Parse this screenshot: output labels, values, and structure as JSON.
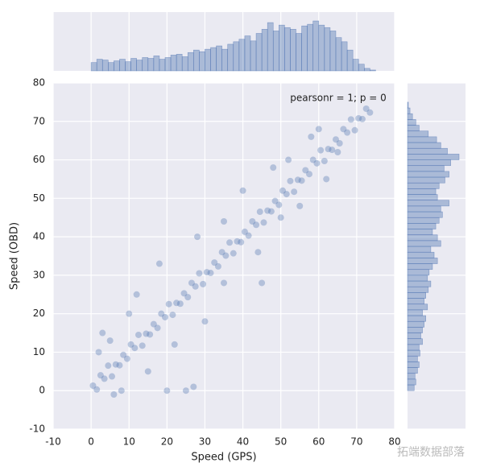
{
  "chart_data": {
    "type": "scatter",
    "xlabel": "Speed (GPS)",
    "ylabel": "Speed (OBD)",
    "annotation": "pearsonr = 1; p = 0",
    "watermark": "拓端数据部落",
    "color": "#4c72b0",
    "grid": true,
    "xlim": [
      -10,
      80
    ],
    "ylim": [
      -10,
      80
    ],
    "xticks": [
      -10,
      0,
      10,
      20,
      30,
      40,
      50,
      60,
      70,
      80
    ],
    "yticks": [
      -10,
      0,
      10,
      20,
      30,
      40,
      50,
      60,
      70,
      80
    ],
    "x": [
      0.5,
      1.5,
      2.5,
      3.5,
      4.5,
      5.5,
      6.5,
      7.5,
      8.5,
      9.5,
      10.5,
      11.5,
      12.5,
      13.5,
      14.5,
      15.5,
      16.5,
      17.5,
      18.5,
      19.5,
      20.5,
      21.5,
      22.5,
      23.5,
      24.5,
      25.5,
      26.5,
      27.5,
      28.5,
      29.5,
      30.5,
      31.5,
      32.5,
      33.5,
      34.5,
      35.5,
      36.5,
      37.5,
      38.5,
      39.5,
      40.5,
      41.5,
      42.5,
      43.5,
      44.5,
      45.5,
      46.5,
      47.5,
      48.5,
      49.5,
      50.5,
      51.5,
      52.5,
      53.5,
      54.5,
      55.5,
      56.5,
      57.5,
      58.5,
      59.5,
      60.5,
      61.5,
      62.5,
      63.5,
      64.5,
      65.5,
      66.5,
      67.5,
      68.5,
      69.5,
      70.5,
      71.5,
      72.5,
      73.5,
      3,
      5,
      8,
      12,
      2,
      15,
      22,
      25,
      20,
      18,
      30,
      35,
      28,
      40,
      44,
      50,
      55,
      48,
      58,
      62,
      60,
      65,
      52,
      35,
      10,
      6,
      27,
      45
    ],
    "values": [
      1.3,
      0.3,
      4,
      3.1,
      6.5,
      3.7,
      6.8,
      6.6,
      9.3,
      8.3,
      12,
      11.1,
      14.5,
      11.7,
      14.8,
      14.6,
      17.3,
      16.3,
      20,
      19.1,
      22.5,
      19.7,
      22.8,
      22.6,
      25.3,
      24.3,
      28,
      27.1,
      30.5,
      27.7,
      30.8,
      30.6,
      33.3,
      32.3,
      36,
      35.1,
      38.5,
      35.7,
      38.8,
      38.6,
      41.3,
      40.3,
      44,
      43.1,
      46.5,
      43.7,
      46.8,
      46.6,
      49.3,
      48.3,
      52,
      51.1,
      54.5,
      51.7,
      54.8,
      54.6,
      57.3,
      56.3,
      60,
      59.1,
      62.5,
      59.7,
      62.8,
      62.6,
      65.3,
      64.3,
      68,
      67.1,
      70.5,
      67.7,
      70.8,
      70.6,
      73.3,
      72.3,
      15,
      13,
      0,
      25,
      10,
      5,
      12,
      0,
      0,
      33,
      18,
      28,
      40,
      52,
      36,
      45,
      48,
      58,
      66,
      55,
      68,
      62,
      60,
      44,
      20,
      -1,
      1,
      28
    ],
    "marginal_x": {
      "bins": [
        0,
        1.5,
        3,
        4.5,
        6,
        7.5,
        9,
        10.5,
        12,
        13.5,
        15,
        16.5,
        18,
        19.5,
        21,
        22.5,
        24,
        25.5,
        27,
        28.5,
        30,
        31.5,
        33,
        34.5,
        36,
        37.5,
        39,
        40.5,
        42,
        43.5,
        45,
        46.5,
        48,
        49.5,
        51,
        52.5,
        54,
        55.5,
        57,
        58.5,
        60,
        61.5,
        63,
        64.5,
        66,
        67.5,
        69,
        70.5,
        72,
        73.5,
        75
      ],
      "counts": [
        10,
        14,
        13,
        10,
        12,
        14,
        11,
        15,
        13,
        16,
        15,
        18,
        14,
        16,
        19,
        20,
        17,
        22,
        25,
        23,
        26,
        28,
        30,
        26,
        32,
        35,
        38,
        42,
        36,
        45,
        50,
        58,
        48,
        55,
        52,
        50,
        45,
        54,
        56,
        60,
        55,
        52,
        48,
        40,
        35,
        25,
        14,
        8,
        3,
        1
      ]
    },
    "marginal_y": {
      "bins": [
        0,
        1.5,
        3,
        4.5,
        6,
        7.5,
        9,
        10.5,
        12,
        13.5,
        15,
        16.5,
        18,
        19.5,
        21,
        22.5,
        24,
        25.5,
        27,
        28.5,
        30,
        31.5,
        33,
        34.5,
        36,
        37.5,
        39,
        40.5,
        42,
        43.5,
        45,
        46.5,
        48,
        49.5,
        51,
        52.5,
        54,
        55.5,
        57,
        58.5,
        60,
        61.5,
        63,
        64.5,
        66,
        67.5,
        69,
        70.5,
        72,
        73.5,
        75
      ],
      "counts": [
        8,
        10,
        9,
        12,
        14,
        12,
        15,
        14,
        18,
        16,
        18,
        20,
        22,
        18,
        24,
        20,
        22,
        25,
        28,
        24,
        26,
        30,
        36,
        32,
        28,
        40,
        36,
        30,
        34,
        38,
        42,
        40,
        50,
        36,
        34,
        38,
        45,
        50,
        44,
        52,
        62,
        48,
        40,
        35,
        25,
        14,
        10,
        6,
        3,
        1
      ]
    }
  }
}
